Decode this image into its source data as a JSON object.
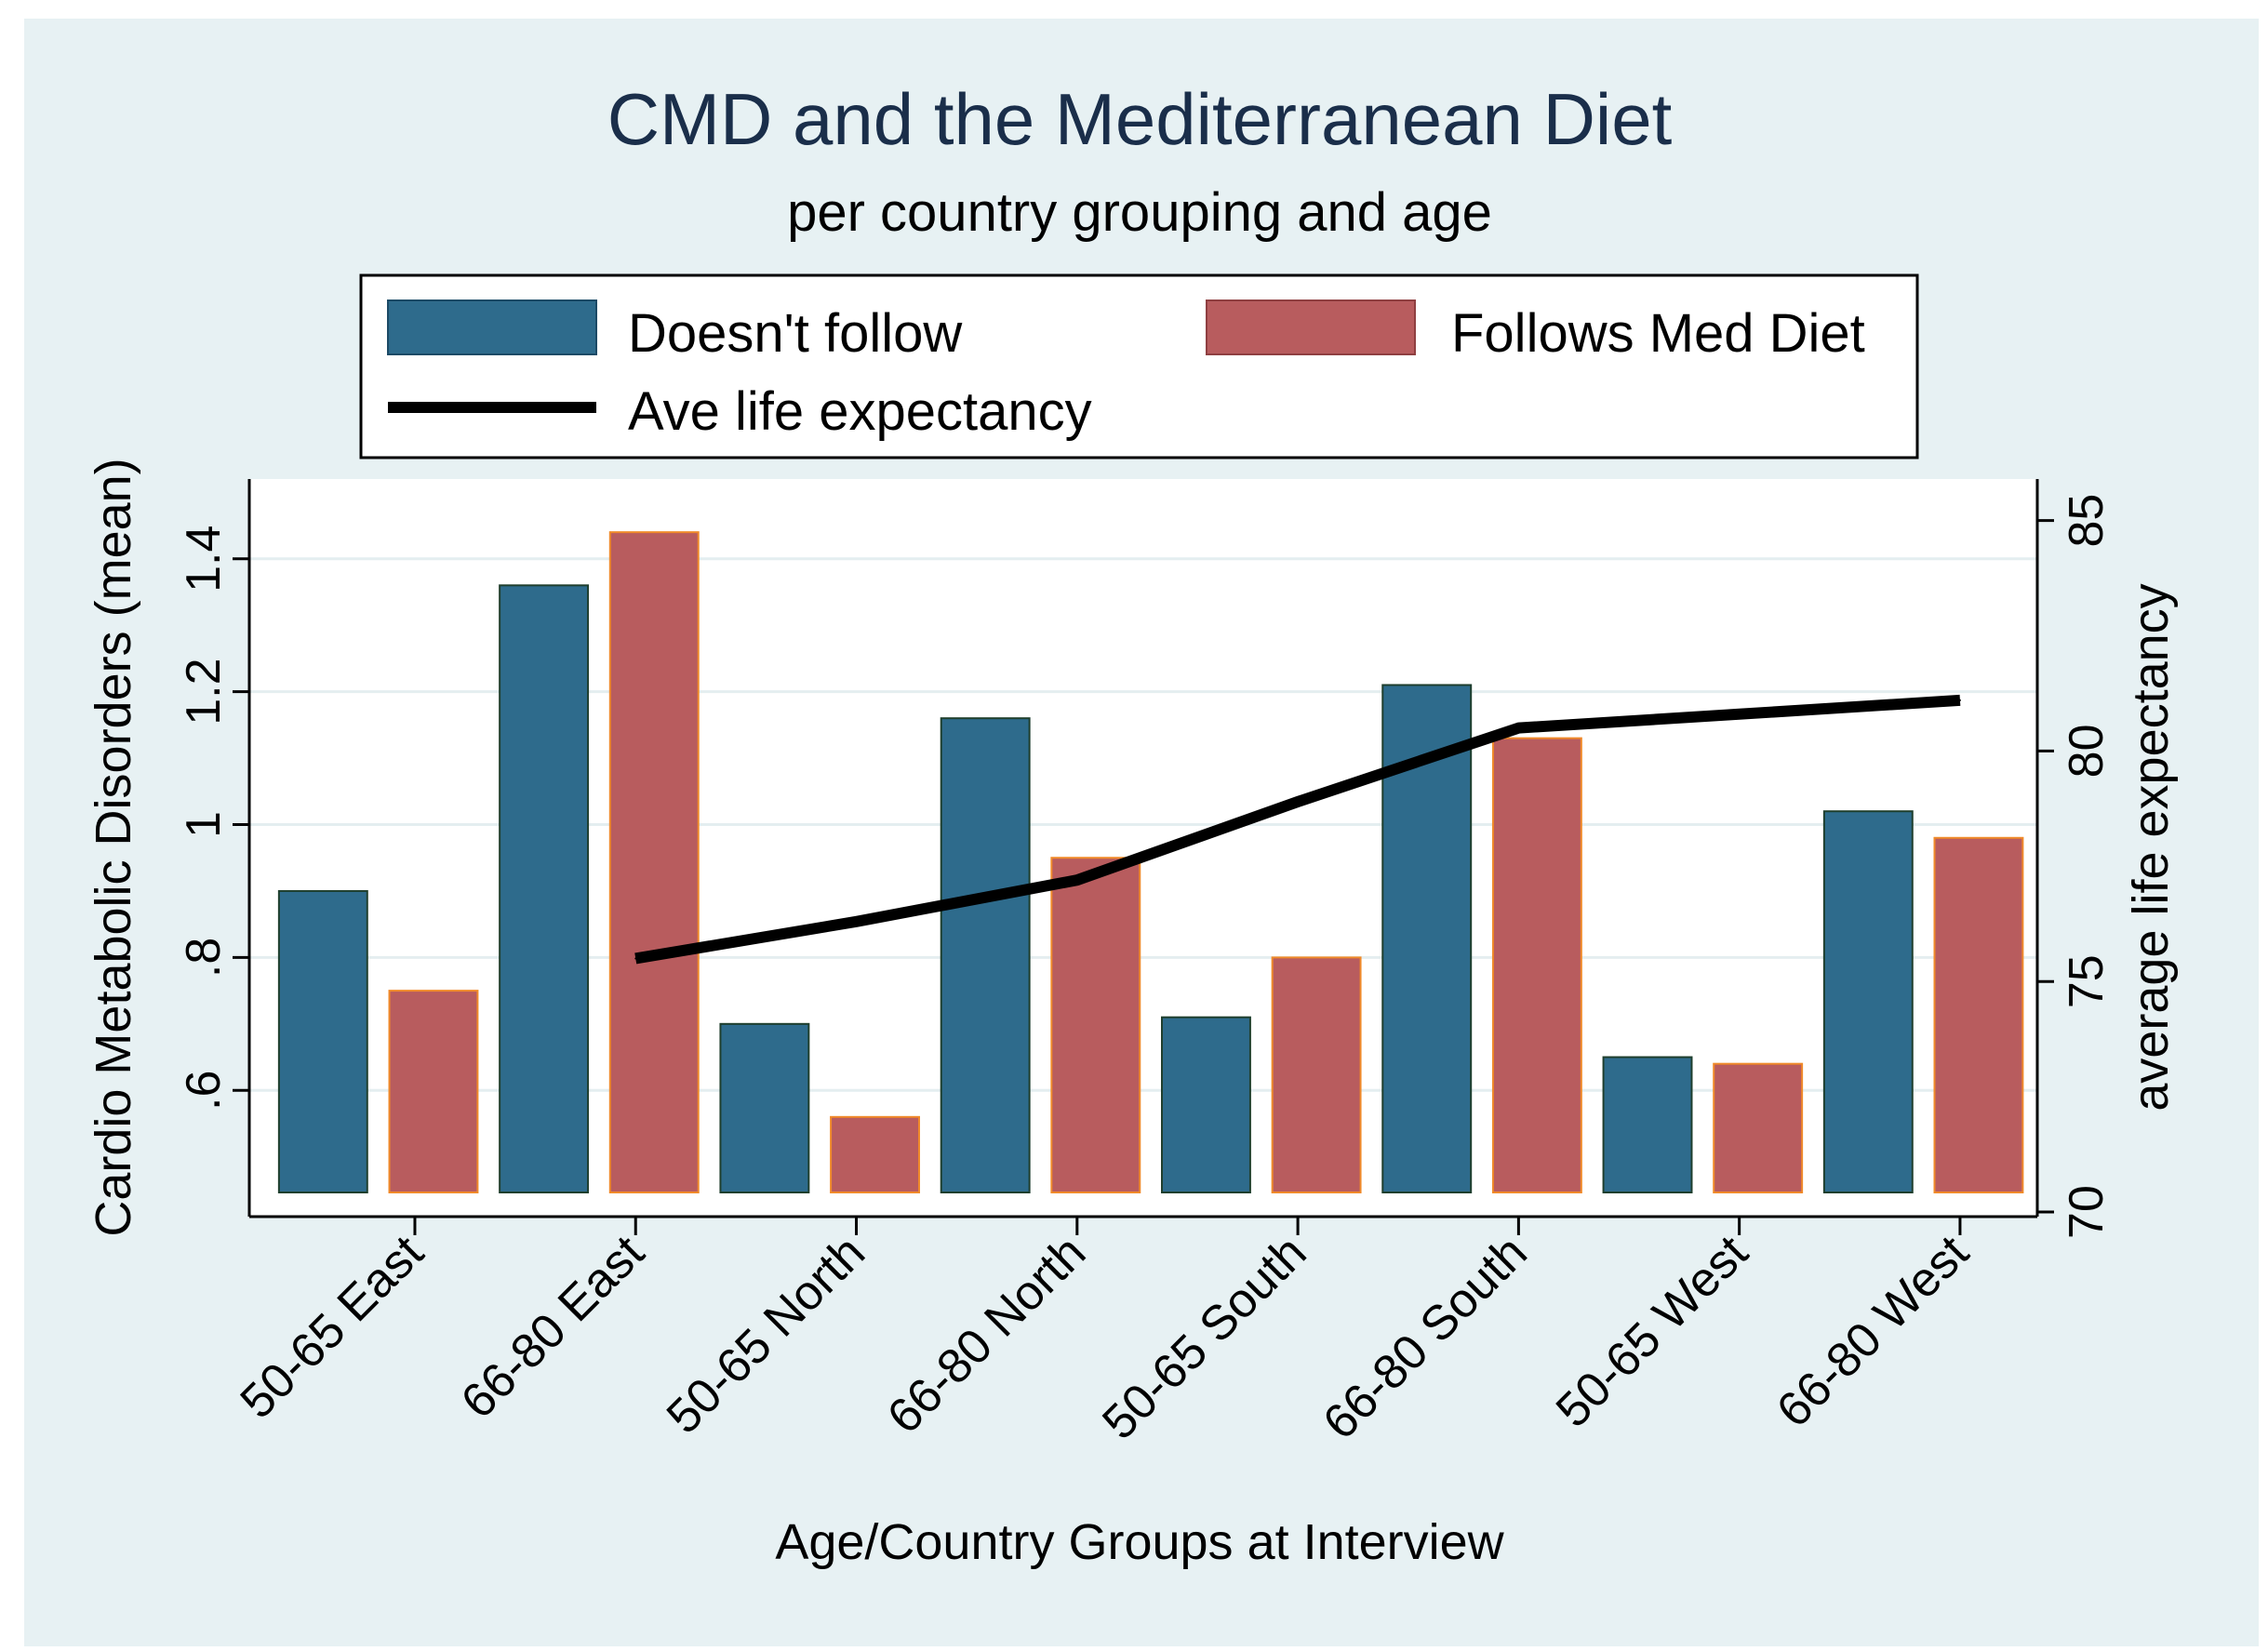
{
  "chart_data": {
    "type": "bar",
    "title": "CMD and the Mediterranean Diet",
    "subtitle": "per country grouping and age",
    "xlabel": "Age/Country Groups at Interview",
    "ylabel": "Cardio Metabolic Disorders (mean)",
    "y2label": "average life expectancy",
    "categories": [
      "50-65 East",
      "66-80 East",
      "50-65 North",
      "66-80 North",
      "50-65 South",
      "66-80 South",
      "50-65 West",
      "66-80 West"
    ],
    "series": [
      {
        "name": "Doesn't follow",
        "color": "#2e6b8c",
        "values": [
          0.9,
          1.36,
          0.7,
          1.16,
          0.71,
          1.21,
          0.65,
          1.02
        ]
      },
      {
        "name": "Follows Med Diet",
        "color": "#b85c5e",
        "values": [
          0.75,
          1.44,
          0.56,
          0.95,
          0.8,
          1.13,
          0.64,
          0.98
        ]
      }
    ],
    "line_series": {
      "name": "Ave life expectancy",
      "color": "#000000",
      "axis": "right",
      "x_categories": [
        "66-80 East",
        "50-65 North",
        "66-80 North",
        "50-65 South",
        "66-80 South",
        "50-65 West",
        "66-80 West"
      ],
      "values": [
        75.5,
        76.3,
        77.2,
        78.9,
        80.5,
        80.8,
        81.1
      ]
    },
    "ylim": [
      0.41,
      1.52
    ],
    "y2lim": [
      69.9,
      85.9
    ],
    "yticks": [
      0.6,
      0.8,
      1.0,
      1.2,
      1.4
    ],
    "ytick_labels": [
      ".6",
      ".8",
      "1",
      "1.2",
      "1.4"
    ],
    "y2ticks": [
      70,
      75,
      80,
      85
    ],
    "y2tick_labels": [
      "70",
      "75",
      "80",
      "85"
    ],
    "bar_base": 0.41,
    "grid": true,
    "legend_position": "top"
  },
  "colors": {
    "outer_background": "#e7f1f3",
    "plot_background": "#ffffff",
    "grid": "#e4eef0"
  }
}
